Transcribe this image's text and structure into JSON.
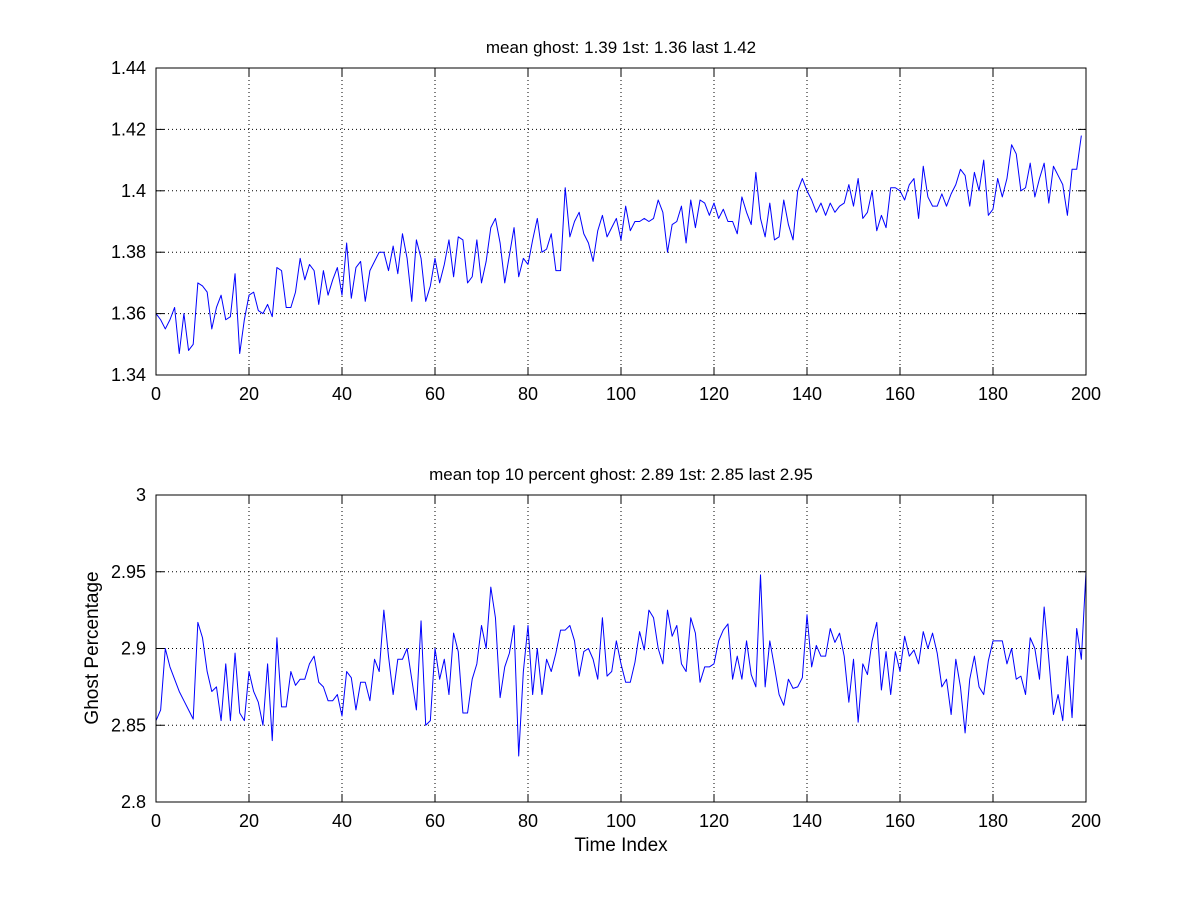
{
  "colors": {
    "background": "#ffffff",
    "line": "#0000ff",
    "axes": "#000000",
    "grid": "#000000"
  },
  "chart_data": [
    {
      "type": "line",
      "title": "mean ghost: 1.39  1st: 1.36   last 1.42",
      "xlabel": "",
      "ylabel": "",
      "xlim": [
        0,
        200
      ],
      "ylim": [
        1.34,
        1.44
      ],
      "xticks": [
        0,
        20,
        40,
        60,
        80,
        100,
        120,
        140,
        160,
        180,
        200
      ],
      "xtick_labels": [
        "0",
        "20",
        "40",
        "60",
        "80",
        "100",
        "120",
        "140",
        "160",
        "180",
        "200"
      ],
      "yticks": [
        1.34,
        1.36,
        1.38,
        1.4,
        1.42,
        1.44
      ],
      "ytick_labels": [
        "1.34",
        "1.36",
        "1.38",
        "1.4",
        "1.42",
        "1.44"
      ],
      "grid": true,
      "legend": "none",
      "series": [
        {
          "x_start": 0,
          "x_step": 1,
          "values": [
            1.36,
            1.358,
            1.355,
            1.358,
            1.362,
            1.347,
            1.36,
            1.348,
            1.35,
            1.37,
            1.369,
            1.367,
            1.355,
            1.362,
            1.366,
            1.358,
            1.359,
            1.373,
            1.347,
            1.358,
            1.366,
            1.367,
            1.361,
            1.36,
            1.363,
            1.359,
            1.375,
            1.374,
            1.362,
            1.362,
            1.367,
            1.378,
            1.371,
            1.376,
            1.374,
            1.363,
            1.374,
            1.366,
            1.371,
            1.375,
            1.366,
            1.383,
            1.365,
            1.375,
            1.377,
            1.364,
            1.374,
            1.377,
            1.38,
            1.38,
            1.374,
            1.382,
            1.373,
            1.386,
            1.378,
            1.364,
            1.384,
            1.378,
            1.364,
            1.369,
            1.378,
            1.37,
            1.376,
            1.384,
            1.372,
            1.385,
            1.384,
            1.37,
            1.372,
            1.384,
            1.37,
            1.377,
            1.388,
            1.391,
            1.383,
            1.37,
            1.379,
            1.388,
            1.372,
            1.378,
            1.376,
            1.384,
            1.391,
            1.38,
            1.381,
            1.386,
            1.374,
            1.374,
            1.401,
            1.385,
            1.39,
            1.393,
            1.386,
            1.383,
            1.377,
            1.387,
            1.392,
            1.385,
            1.388,
            1.391,
            1.384,
            1.395,
            1.387,
            1.39,
            1.39,
            1.391,
            1.39,
            1.391,
            1.397,
            1.393,
            1.38,
            1.389,
            1.39,
            1.395,
            1.383,
            1.397,
            1.388,
            1.397,
            1.396,
            1.392,
            1.396,
            1.391,
            1.394,
            1.39,
            1.39,
            1.386,
            1.398,
            1.393,
            1.389,
            1.406,
            1.391,
            1.385,
            1.396,
            1.384,
            1.385,
            1.397,
            1.389,
            1.384,
            1.4,
            1.404,
            1.4,
            1.397,
            1.393,
            1.396,
            1.392,
            1.396,
            1.393,
            1.395,
            1.396,
            1.402,
            1.395,
            1.404,
            1.391,
            1.393,
            1.4,
            1.387,
            1.392,
            1.388,
            1.401,
            1.401,
            1.4,
            1.397,
            1.402,
            1.404,
            1.391,
            1.408,
            1.398,
            1.395,
            1.395,
            1.399,
            1.395,
            1.399,
            1.402,
            1.407,
            1.405,
            1.395,
            1.406,
            1.4,
            1.41,
            1.392,
            1.394,
            1.404,
            1.398,
            1.404,
            1.415,
            1.412,
            1.4,
            1.401,
            1.409,
            1.398,
            1.404,
            1.409,
            1.396,
            1.408,
            1.405,
            1.402,
            1.392,
            1.407,
            1.407,
            1.418
          ]
        }
      ]
    },
    {
      "type": "line",
      "title": "mean top 10 percent  ghost: 2.89  1st: 2.85   last 2.95",
      "xlabel": "Time Index",
      "ylabel": "Ghost Percentage",
      "xlim": [
        0,
        200
      ],
      "ylim": [
        2.8,
        3.0
      ],
      "xticks": [
        0,
        20,
        40,
        60,
        80,
        100,
        120,
        140,
        160,
        180,
        200
      ],
      "xtick_labels": [
        "0",
        "20",
        "40",
        "60",
        "80",
        "100",
        "120",
        "140",
        "160",
        "180",
        "200"
      ],
      "yticks": [
        2.8,
        2.85,
        2.9,
        2.95,
        3.0
      ],
      "ytick_labels": [
        "2.8",
        "2.85",
        "2.9",
        "2.95",
        "3"
      ],
      "grid": true,
      "legend": "none",
      "series": [
        {
          "x_start": 0,
          "x_step": 1,
          "values": [
            2.853,
            2.86,
            2.9,
            2.888,
            2.88,
            2.872,
            2.866,
            2.86,
            2.854,
            2.917,
            2.907,
            2.885,
            2.872,
            2.875,
            2.853,
            2.89,
            2.853,
            2.897,
            2.858,
            2.853,
            2.885,
            2.872,
            2.865,
            2.85,
            2.89,
            2.84,
            2.907,
            2.862,
            2.862,
            2.885,
            2.876,
            2.88,
            2.88,
            2.89,
            2.895,
            2.878,
            2.875,
            2.866,
            2.866,
            2.87,
            2.856,
            2.885,
            2.881,
            2.86,
            2.878,
            2.878,
            2.866,
            2.893,
            2.885,
            2.925,
            2.895,
            2.87,
            2.893,
            2.893,
            2.9,
            2.88,
            2.86,
            2.918,
            2.85,
            2.853,
            2.9,
            2.88,
            2.893,
            2.87,
            2.91,
            2.898,
            2.858,
            2.858,
            2.88,
            2.89,
            2.915,
            2.9,
            2.94,
            2.92,
            2.868,
            2.888,
            2.897,
            2.915,
            2.83,
            2.885,
            2.915,
            2.87,
            2.9,
            2.87,
            2.893,
            2.885,
            2.897,
            2.912,
            2.912,
            2.915,
            2.905,
            2.882,
            2.898,
            2.9,
            2.893,
            2.88,
            2.92,
            2.882,
            2.885,
            2.905,
            2.89,
            2.878,
            2.878,
            2.891,
            2.911,
            2.899,
            2.925,
            2.92,
            2.9,
            2.89,
            2.925,
            2.908,
            2.915,
            2.89,
            2.885,
            2.92,
            2.91,
            2.878,
            2.888,
            2.888,
            2.89,
            2.905,
            2.912,
            2.916,
            2.88,
            2.895,
            2.88,
            2.905,
            2.883,
            2.875,
            2.948,
            2.875,
            2.905,
            2.888,
            2.87,
            2.863,
            2.88,
            2.874,
            2.875,
            2.881,
            2.922,
            2.888,
            2.902,
            2.895,
            2.895,
            2.913,
            2.904,
            2.91,
            2.895,
            2.865,
            2.893,
            2.852,
            2.89,
            2.883,
            2.905,
            2.917,
            2.873,
            2.898,
            2.87,
            2.898,
            2.885,
            2.908,
            2.895,
            2.899,
            2.89,
            2.911,
            2.9,
            2.91,
            2.897,
            2.875,
            2.88,
            2.857,
            2.893,
            2.875,
            2.845,
            2.88,
            2.895,
            2.875,
            2.87,
            2.892,
            2.905,
            2.905,
            2.905,
            2.89,
            2.9,
            2.88,
            2.882,
            2.87,
            2.907,
            2.9,
            2.88,
            2.927,
            2.893,
            2.857,
            2.87,
            2.853,
            2.895,
            2.855,
            2.913,
            2.893,
            2.95
          ]
        }
      ]
    }
  ]
}
